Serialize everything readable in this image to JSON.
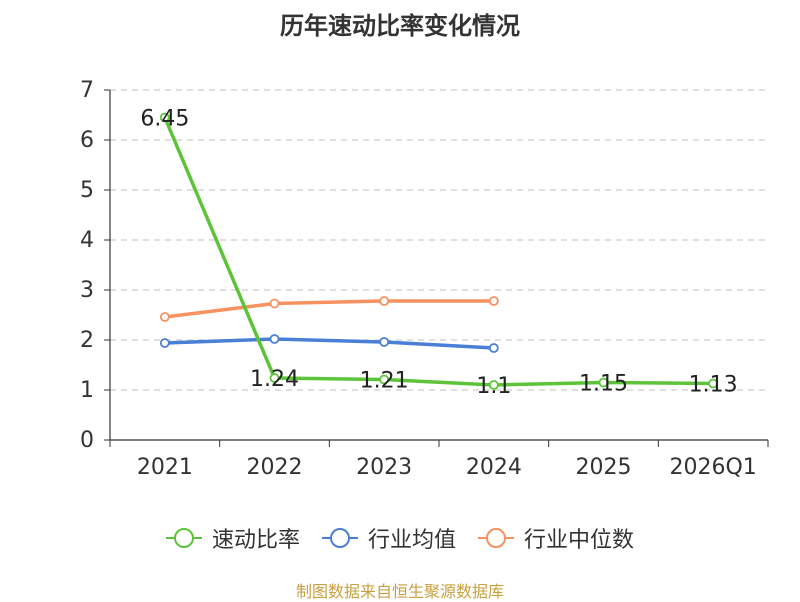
{
  "chart_data": {
    "type": "line",
    "title": "历年速动比率变化情况",
    "categories": [
      "2021",
      "2022",
      "2023",
      "2024",
      "2025",
      "2026Q1"
    ],
    "ylim": [
      0,
      7
    ],
    "yticks": [
      0,
      1,
      2,
      3,
      4,
      5,
      6,
      7
    ],
    "grid": true,
    "legend_position": "bottom",
    "series": [
      {
        "name": "速动比率",
        "color": "#5dc43a",
        "values": [
          6.45,
          1.24,
          1.21,
          1.1,
          1.15,
          1.13
        ],
        "labels": [
          "6.45",
          "1.24",
          "1.21",
          "1.1",
          "1.15",
          "1.13"
        ]
      },
      {
        "name": "行业均值",
        "color": "#4a7fd6",
        "values": [
          1.94,
          2.02,
          1.96,
          1.84,
          null,
          null
        ]
      },
      {
        "name": "行业中位数",
        "color": "#f79160",
        "values": [
          2.46,
          2.73,
          2.78,
          2.78,
          null,
          null
        ]
      }
    ]
  },
  "source": "制图数据来自恒生聚源数据库"
}
